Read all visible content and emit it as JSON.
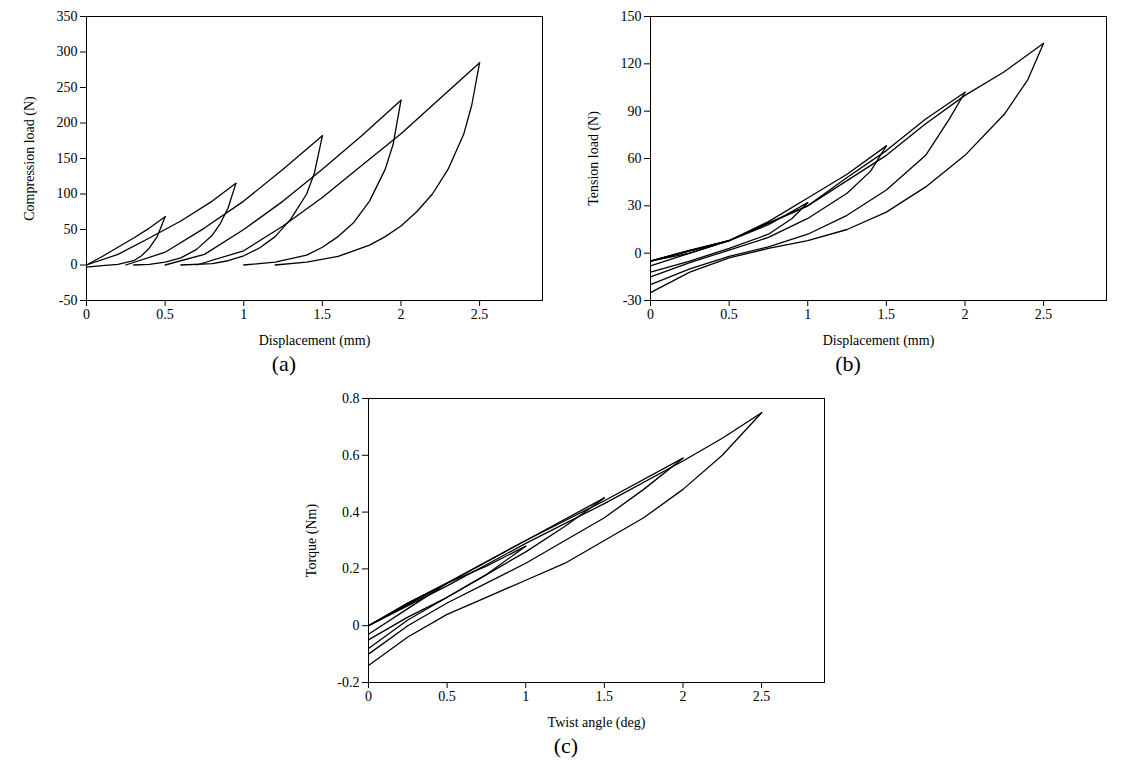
{
  "chart_data": [
    {
      "type": "line",
      "title": "(a)",
      "x_label": "Displacement (mm)",
      "y_label": "Compression load (N)",
      "xlim": [
        0,
        2.9
      ],
      "xticks": [
        0,
        0.5,
        1,
        1.5,
        2,
        2.5
      ],
      "ylim": [
        -50,
        350
      ],
      "yticks": [
        -50,
        0,
        50,
        100,
        150,
        200,
        250,
        300,
        350
      ],
      "grid": false,
      "color": "#000000",
      "series": [
        {
          "x": [
            0,
            0.1,
            0.2,
            0.3,
            0.4,
            0.5
          ],
          "values": [
            0,
            12,
            25,
            38,
            52,
            68
          ]
        },
        {
          "x": [
            0.5,
            0.45,
            0.4,
            0.35,
            0.3,
            0.2,
            0.1,
            0
          ],
          "values": [
            68,
            40,
            24,
            13,
            6,
            1,
            -1,
            -3
          ]
        },
        {
          "x": [
            0,
            0.2,
            0.4,
            0.6,
            0.8,
            0.95
          ],
          "values": [
            0,
            15,
            38,
            62,
            90,
            115
          ]
        },
        {
          "x": [
            0.95,
            0.9,
            0.85,
            0.8,
            0.7,
            0.6,
            0.5,
            0.4,
            0.3
          ],
          "values": [
            115,
            80,
            58,
            42,
            22,
            10,
            4,
            1,
            0
          ]
        },
        {
          "x": [
            0.25,
            0.5,
            0.75,
            1.0,
            1.25,
            1.5
          ],
          "values": [
            0,
            18,
            52,
            90,
            135,
            182
          ]
        },
        {
          "x": [
            1.5,
            1.45,
            1.4,
            1.3,
            1.2,
            1.1,
            1.0,
            0.9,
            0.8,
            0.6
          ],
          "values": [
            182,
            130,
            100,
            65,
            40,
            24,
            13,
            6,
            2,
            0
          ]
        },
        {
          "x": [
            0.5,
            0.75,
            1.0,
            1.25,
            1.5,
            1.75,
            2.0
          ],
          "values": [
            0,
            15,
            50,
            90,
            135,
            182,
            232
          ]
        },
        {
          "x": [
            2.0,
            1.95,
            1.9,
            1.8,
            1.7,
            1.6,
            1.5,
            1.4,
            1.2,
            1.0
          ],
          "values": [
            232,
            170,
            135,
            90,
            60,
            40,
            25,
            14,
            4,
            0
          ]
        },
        {
          "x": [
            0.7,
            1.0,
            1.25,
            1.5,
            1.75,
            2.0,
            2.25,
            2.5
          ],
          "values": [
            0,
            20,
            55,
            95,
            140,
            185,
            235,
            285
          ]
        },
        {
          "x": [
            2.5,
            2.45,
            2.4,
            2.3,
            2.2,
            2.1,
            2.0,
            1.9,
            1.8,
            1.6,
            1.4,
            1.2
          ],
          "values": [
            285,
            225,
            185,
            135,
            100,
            75,
            55,
            40,
            28,
            12,
            4,
            0
          ]
        }
      ]
    },
    {
      "type": "line",
      "title": "(b)",
      "x_label": "Displacement (mm)",
      "y_label": "Tension load (N)",
      "xlim": [
        0,
        2.9
      ],
      "xticks": [
        0,
        0.5,
        1,
        1.5,
        2,
        2.5
      ],
      "ylim": [
        -30,
        150
      ],
      "yticks": [
        -30,
        0,
        30,
        60,
        90,
        120,
        150
      ],
      "grid": false,
      "color": "#000000",
      "series": [
        {
          "x": [
            0,
            0.25,
            0.5
          ],
          "values": [
            -5,
            2,
            8
          ]
        },
        {
          "x": [
            0.5,
            0.25,
            0
          ],
          "values": [
            8,
            0,
            -8
          ]
        },
        {
          "x": [
            0,
            0.25,
            0.5,
            0.75,
            1.0
          ],
          "values": [
            -5,
            0,
            8,
            18,
            32
          ]
        },
        {
          "x": [
            1.0,
            0.9,
            0.75,
            0.5,
            0.25,
            0
          ],
          "values": [
            32,
            22,
            12,
            3,
            -5,
            -12
          ]
        },
        {
          "x": [
            0,
            0.5,
            0.75,
            1.0,
            1.25,
            1.5
          ],
          "values": [
            -5,
            8,
            20,
            35,
            50,
            68
          ]
        },
        {
          "x": [
            1.5,
            1.4,
            1.25,
            1.0,
            0.75,
            0.5,
            0.25,
            0
          ],
          "values": [
            68,
            52,
            38,
            22,
            10,
            2,
            -6,
            -15
          ]
        },
        {
          "x": [
            0,
            0.5,
            1.0,
            1.25,
            1.5,
            1.75,
            2.0
          ],
          "values": [
            -5,
            8,
            30,
            48,
            65,
            85,
            102
          ]
        },
        {
          "x": [
            2.0,
            1.9,
            1.75,
            1.5,
            1.25,
            1.0,
            0.75,
            0.5,
            0.25,
            0
          ],
          "values": [
            102,
            85,
            62,
            40,
            24,
            12,
            4,
            -2,
            -10,
            -20
          ]
        },
        {
          "x": [
            0,
            0.5,
            1.0,
            1.5,
            1.75,
            2.0,
            2.25,
            2.5
          ],
          "values": [
            -5,
            8,
            30,
            62,
            82,
            100,
            115,
            133
          ]
        },
        {
          "x": [
            2.5,
            2.4,
            2.25,
            2.0,
            1.75,
            1.5,
            1.25,
            1.0,
            0.75,
            0.5,
            0.25,
            0
          ],
          "values": [
            133,
            110,
            88,
            62,
            42,
            26,
            15,
            8,
            3,
            -3,
            -12,
            -25
          ]
        }
      ]
    },
    {
      "type": "line",
      "title": "(c)",
      "x_label": "Twist angle (deg)",
      "y_label": "Torque (Nm)",
      "xlim": [
        0,
        2.9
      ],
      "xticks": [
        0,
        0.5,
        1,
        1.5,
        2,
        2.5
      ],
      "ylim": [
        -0.2,
        0.8
      ],
      "yticks": [
        -0.2,
        0,
        0.2,
        0.4,
        0.6,
        0.8
      ],
      "grid": false,
      "color": "#000000",
      "series": [
        {
          "x": [
            0,
            0.25,
            0.5
          ],
          "values": [
            0,
            0.08,
            0.15
          ]
        },
        {
          "x": [
            0.5,
            0.25,
            0
          ],
          "values": [
            0.15,
            0.06,
            -0.03
          ]
        },
        {
          "x": [
            0,
            0.25,
            0.5,
            0.75,
            1.0
          ],
          "values": [
            0,
            0.08,
            0.15,
            0.21,
            0.28
          ]
        },
        {
          "x": [
            1.0,
            0.75,
            0.5,
            0.25,
            0
          ],
          "values": [
            0.28,
            0.18,
            0.1,
            0.03,
            -0.05
          ]
        },
        {
          "x": [
            0,
            0.5,
            1.0,
            1.5
          ],
          "values": [
            0,
            0.15,
            0.3,
            0.45
          ]
        },
        {
          "x": [
            1.5,
            1.25,
            1.0,
            0.75,
            0.5,
            0.25,
            0
          ],
          "values": [
            0.45,
            0.35,
            0.26,
            0.18,
            0.1,
            0.02,
            -0.08
          ]
        },
        {
          "x": [
            0,
            0.5,
            1.0,
            1.5,
            2.0
          ],
          "values": [
            0,
            0.15,
            0.3,
            0.44,
            0.59
          ]
        },
        {
          "x": [
            2.0,
            1.75,
            1.5,
            1.25,
            1.0,
            0.75,
            0.5,
            0.25,
            0
          ],
          "values": [
            0.59,
            0.48,
            0.38,
            0.3,
            0.22,
            0.15,
            0.08,
            0.0,
            -0.1
          ]
        },
        {
          "x": [
            0,
            0.5,
            1.0,
            1.5,
            2.0,
            2.25,
            2.5
          ],
          "values": [
            0,
            0.14,
            0.29,
            0.43,
            0.58,
            0.66,
            0.75
          ]
        },
        {
          "x": [
            2.5,
            2.25,
            2.0,
            1.75,
            1.5,
            1.25,
            1.0,
            0.75,
            0.5,
            0.25,
            0
          ],
          "values": [
            0.75,
            0.6,
            0.48,
            0.38,
            0.3,
            0.22,
            0.16,
            0.1,
            0.04,
            -0.04,
            -0.14
          ]
        }
      ]
    }
  ]
}
